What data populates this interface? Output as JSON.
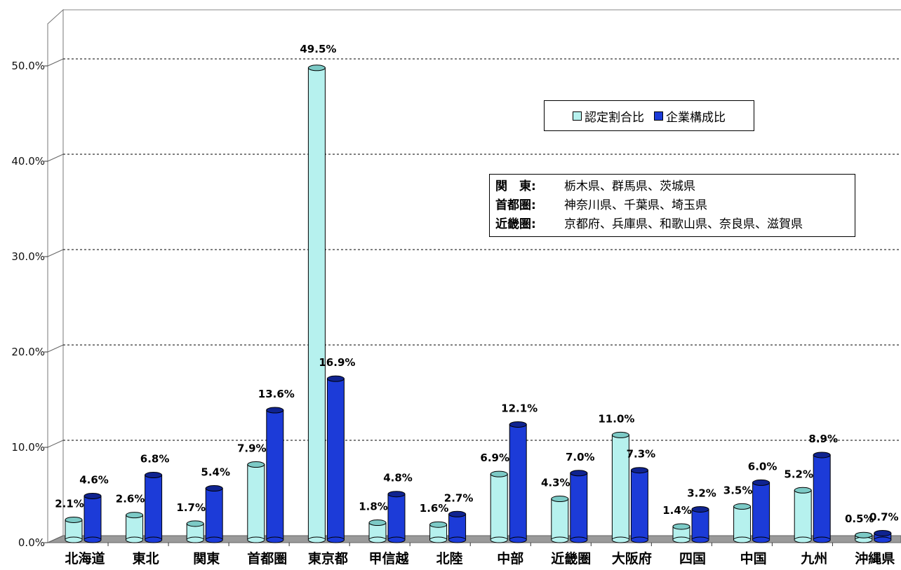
{
  "chart_data": {
    "type": "bar",
    "categories": [
      "北海道",
      "東北",
      "関東",
      "首都圏",
      "東京都",
      "甲信越",
      "北陸",
      "中部",
      "近畿圏",
      "大阪府",
      "四国",
      "中国",
      "九州",
      "沖縄県"
    ],
    "series": [
      {
        "name": "認定割合比",
        "color": "#b6f1ee",
        "values": [
          2.1,
          2.6,
          1.7,
          7.9,
          49.5,
          1.8,
          1.6,
          6.9,
          4.3,
          11.0,
          1.4,
          3.5,
          5.2,
          0.5
        ],
        "labels": [
          "2.1%",
          "2.6%",
          "1.7%",
          "7.9%",
          "49.5%",
          "1.8%",
          "1.6%",
          "6.9%",
          "4.3%",
          "11.0%",
          "1.4%",
          "3.5%",
          "5.2%",
          "0.5%"
        ]
      },
      {
        "name": "企業構成比",
        "color": "#1c3bd8",
        "values": [
          4.6,
          6.8,
          5.4,
          13.6,
          16.9,
          4.8,
          2.7,
          12.1,
          7.0,
          7.3,
          3.2,
          6.0,
          8.9,
          0.7
        ],
        "labels": [
          "4.6%",
          "6.8%",
          "5.4%",
          "13.6%",
          "16.9%",
          "4.8%",
          "2.7%",
          "12.1%",
          "7.0%",
          "7.3%",
          "3.2%",
          "6.0%",
          "8.9%",
          "0.7%"
        ]
      }
    ],
    "y_ticks": [
      {
        "value": 0,
        "label": "0.0%"
      },
      {
        "value": 10,
        "label": "10.0%"
      },
      {
        "value": 20,
        "label": "20.0%"
      },
      {
        "value": 30,
        "label": "30.0%"
      },
      {
        "value": 40,
        "label": "40.0%"
      },
      {
        "value": 50,
        "label": "50.0%"
      }
    ],
    "ylim": [
      0,
      55
    ],
    "title": "",
    "xlabel": "",
    "ylabel": "",
    "grid": "horizontal dashed",
    "legend_position": "top-right"
  },
  "note": {
    "lines": [
      {
        "region": "関　東:",
        "prefectures": "栃木県、群馬県、茨城県"
      },
      {
        "region": "首都圏:",
        "prefectures": "神奈川県、千葉県、埼玉県"
      },
      {
        "region": "近畿圏:",
        "prefectures": "京都府、兵庫県、和歌山県、奈良県、滋賀県"
      }
    ]
  }
}
